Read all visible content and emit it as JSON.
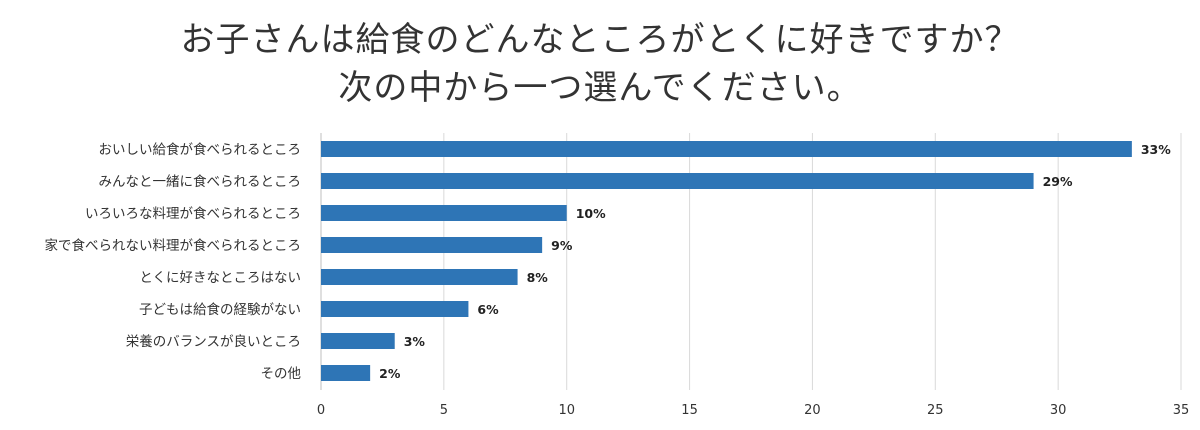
{
  "chart_data": {
    "type": "bar",
    "orientation": "horizontal",
    "title_lines": [
      "お子さんは給食のどんなところがとくに好きですか？",
      "次の中から一つ選んでください。"
    ],
    "categories": [
      "おいしい給食が食べられるところ",
      "みんなと一緒に食べられるところ",
      "いろいろな料理が食べられるところ",
      "家で食べられない料理が食べられるところ",
      "とくに好きなところはない",
      "子どもは給食の経験がない",
      "栄養のバランスが良いところ",
      "その他"
    ],
    "values": [
      33,
      29,
      10,
      9,
      8,
      6,
      3,
      2
    ],
    "value_labels": [
      "33%",
      "29%",
      "10%",
      "9%",
      "8%",
      "6%",
      "3%",
      "2%"
    ],
    "x_ticks": [
      "0",
      "5",
      "10",
      "15",
      "20",
      "25",
      "30",
      "35"
    ],
    "xlim": [
      0,
      35
    ],
    "xlabel": "",
    "ylabel": "",
    "grid": true,
    "legend": "none",
    "bar_color": "#2e75b6"
  }
}
